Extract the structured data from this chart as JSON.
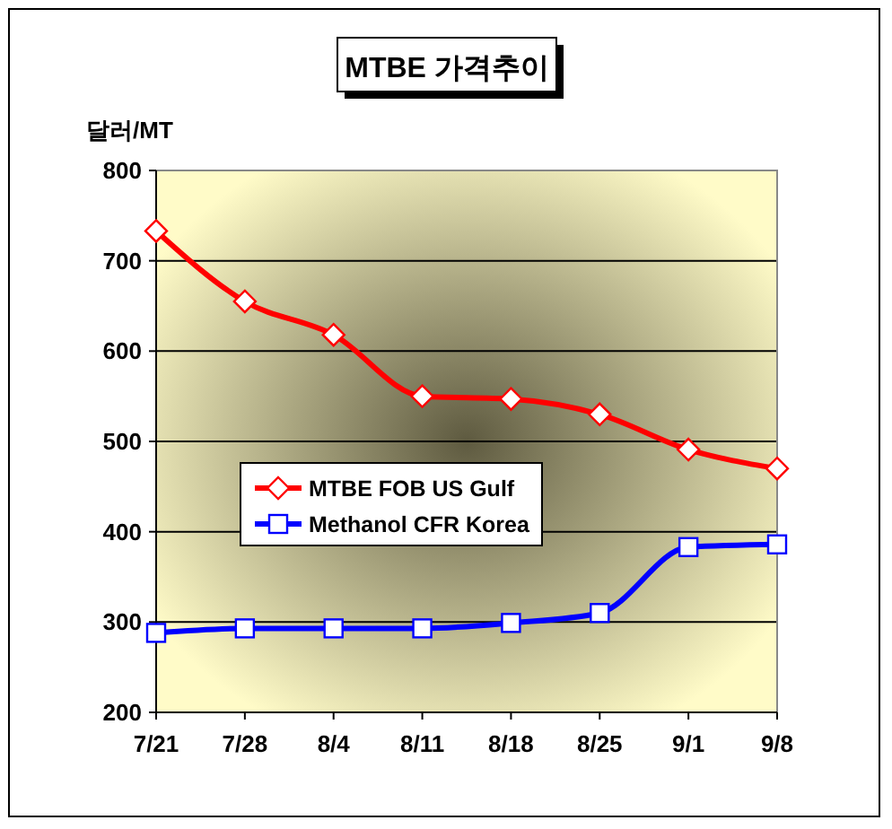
{
  "chart_data": {
    "type": "line",
    "title": "MTBE 가격추이",
    "ylabel": "달러/MT",
    "categories": [
      "7/21",
      "7/28",
      "8/4",
      "8/11",
      "8/18",
      "8/25",
      "9/1",
      "9/8"
    ],
    "series": [
      {
        "name": "MTBE FOB US Gulf",
        "color": "#ff0000",
        "marker": "diamond",
        "values": [
          733,
          655,
          618,
          550,
          547,
          530,
          491,
          470
        ]
      },
      {
        "name": "Methanol CFR Korea",
        "color": "#0000ff",
        "marker": "square",
        "values": [
          288,
          293,
          293,
          293,
          299,
          310,
          383,
          386
        ]
      }
    ],
    "ylim": [
      200,
      800
    ],
    "yticks": [
      200,
      300,
      400,
      500,
      600,
      700,
      800
    ],
    "grid": "y",
    "legend": "left"
  }
}
